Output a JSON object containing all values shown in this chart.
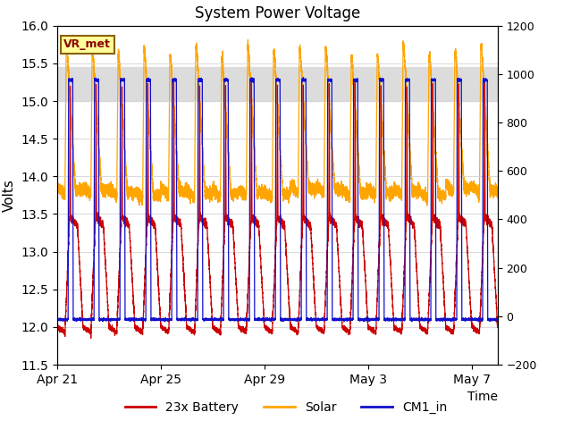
{
  "title": "System Power Voltage",
  "xlabel": "Time",
  "ylabel": "Volts",
  "ylim_left": [
    11.5,
    16.0
  ],
  "ylim_right": [
    -200,
    1200
  ],
  "yticks_left": [
    11.5,
    12.0,
    12.5,
    13.0,
    13.5,
    14.0,
    14.5,
    15.0,
    15.5,
    16.0
  ],
  "yticks_right": [
    -200,
    0,
    200,
    400,
    600,
    800,
    1000,
    1200
  ],
  "xtick_labels": [
    "Apr 21",
    "Apr 25",
    "Apr 29",
    "May 3",
    "May 7"
  ],
  "xtick_positions": [
    0,
    4,
    8,
    12,
    16
  ],
  "num_cycles": 17,
  "battery_color": "#CC0000",
  "solar_color": "#FFA500",
  "cm1_color": "#1010CC",
  "bg_band_color": "#DCDCDC",
  "legend_labels": [
    "23x Battery",
    "Solar",
    "CM1_in"
  ],
  "annotation_text": "VR_met",
  "bg_band_low": 15.0,
  "bg_band_high": 15.45
}
